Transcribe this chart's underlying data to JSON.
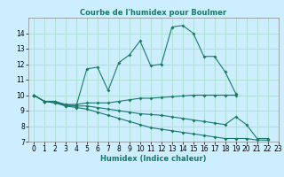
{
  "title": "Courbe de l'humidex pour Boulmer",
  "xlabel": "Humidex (Indice chaleur)",
  "bg_color": "#cceeff",
  "grid_color": "#aaddcc",
  "line_color": "#1a7a6a",
  "xlim": [
    -0.5,
    23
  ],
  "ylim": [
    7,
    15
  ],
  "yticks": [
    7,
    8,
    9,
    10,
    11,
    12,
    13,
    14
  ],
  "xticks": [
    0,
    1,
    2,
    3,
    4,
    5,
    6,
    7,
    8,
    9,
    10,
    11,
    12,
    13,
    14,
    15,
    16,
    17,
    18,
    19,
    20,
    21,
    22,
    23
  ],
  "xtick_labels": [
    "0",
    "1",
    "2",
    "3",
    "4",
    "5",
    "6",
    "7",
    "8",
    "9",
    "10",
    "11",
    "12",
    "13",
    "14",
    "15",
    "16",
    "17",
    "18",
    "19",
    "20",
    "21",
    "22",
    "23"
  ],
  "series": [
    [
      10.0,
      9.6,
      9.6,
      9.3,
      9.3,
      11.7,
      11.8,
      10.3,
      12.1,
      12.6,
      13.5,
      11.9,
      12.0,
      14.4,
      14.5,
      14.0,
      12.5,
      12.5,
      11.5,
      10.1,
      null,
      null,
      null,
      null
    ],
    [
      10.0,
      9.6,
      9.6,
      9.4,
      9.4,
      9.5,
      9.5,
      9.5,
      9.6,
      9.7,
      9.8,
      9.8,
      9.85,
      9.9,
      9.95,
      10.0,
      10.0,
      10.0,
      10.0,
      10.0,
      null,
      null,
      null,
      null
    ],
    [
      10.0,
      9.6,
      9.5,
      9.4,
      9.3,
      9.3,
      9.2,
      9.1,
      9.0,
      8.9,
      8.8,
      8.75,
      8.7,
      8.6,
      8.5,
      8.4,
      8.3,
      8.2,
      8.1,
      8.6,
      8.1,
      7.2,
      7.2,
      null
    ],
    [
      10.0,
      9.6,
      9.5,
      9.3,
      9.2,
      9.1,
      8.9,
      8.7,
      8.5,
      8.3,
      8.1,
      7.9,
      7.8,
      7.7,
      7.6,
      7.5,
      7.4,
      7.3,
      7.2,
      7.2,
      7.2,
      7.1,
      7.1,
      null
    ]
  ]
}
